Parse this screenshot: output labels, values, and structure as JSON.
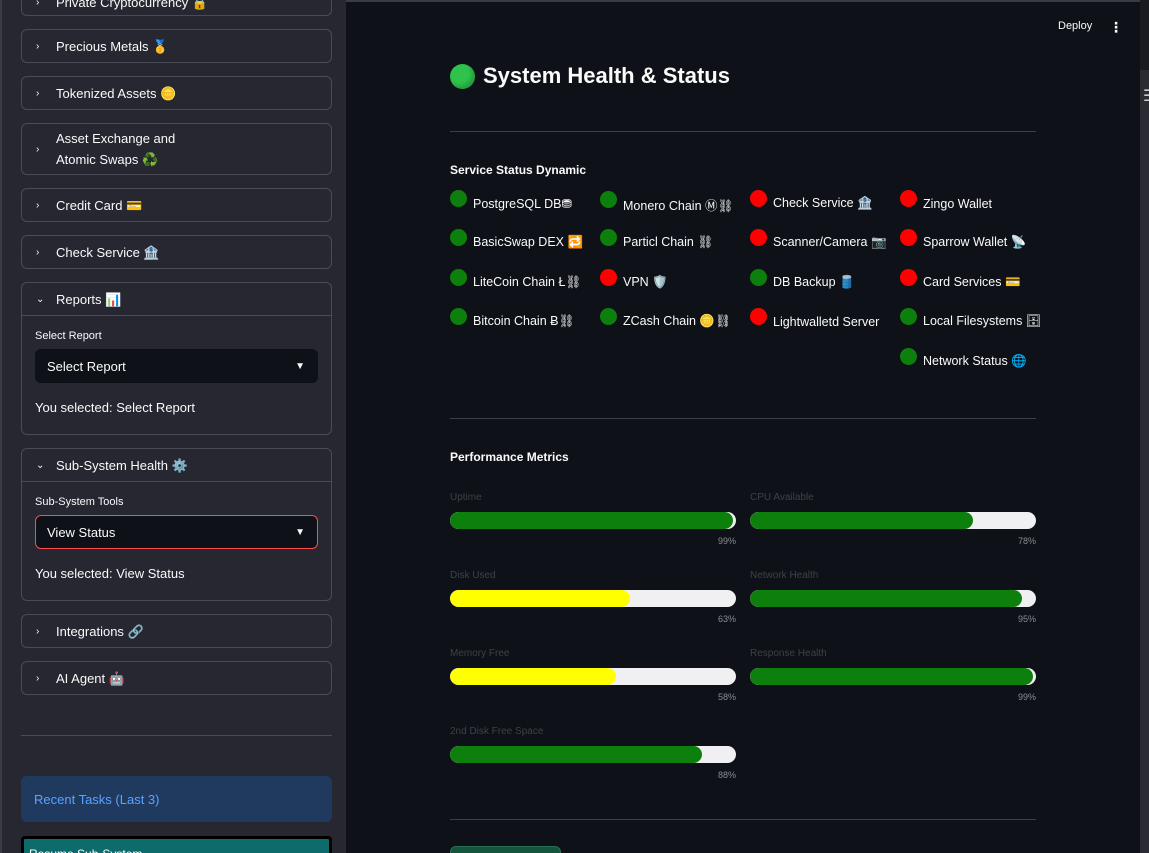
{
  "sidebar": {
    "expanders": [
      {
        "label": "Private Cryptocurrency 🔒",
        "expanded": false
      },
      {
        "label": "Precious Metals 🥇",
        "expanded": false
      },
      {
        "label": "Tokenized Assets 🪙",
        "expanded": false
      },
      {
        "label": "Asset Exchange and",
        "label2": "Atomic Swaps  ♻️",
        "expanded": false
      },
      {
        "label": "Credit Card 💳",
        "expanded": false
      },
      {
        "label": "Check Service 🏦",
        "expanded": false
      },
      {
        "label": "Reports 📊",
        "expanded": true,
        "field_label": "Select Report",
        "select_value": "Select Report",
        "selected_text": "You selected: Select Report"
      },
      {
        "label": "Sub-System Health ⚙️",
        "expanded": true,
        "field_label": "Sub-System Tools",
        "select_value": "View Status",
        "selected_text": "You selected: View Status"
      },
      {
        "label": "Integrations 🔗",
        "expanded": false
      },
      {
        "label": "AI Agent 🤖",
        "expanded": false
      }
    ],
    "recent_tasks": "Recent Tasks (Last 3)",
    "resume_button": "Resume Sub-System"
  },
  "topbar": {
    "deploy": "Deploy",
    "menu_icon": "vertical-ellipsis-icon"
  },
  "main": {
    "title": "System Health & Status",
    "service_section": "Service Status Dynamic",
    "services": [
      {
        "name": "PostgreSQL DB⛃",
        "status": "green"
      },
      {
        "name": "Monero Chain Ⓜ⛓",
        "status": "green"
      },
      {
        "name": "Check Service 🏦",
        "status": "red"
      },
      {
        "name": "Zingo Wallet",
        "status": "red"
      },
      {
        "name": "BasicSwap DEX 🔁",
        "status": "green"
      },
      {
        "name": "Particl Chain ⛓",
        "status": "green"
      },
      {
        "name": "Scanner/Camera 📷",
        "status": "red"
      },
      {
        "name": "Sparrow Wallet 📡",
        "status": "red"
      },
      {
        "name": "LiteCoin Chain Ł⛓",
        "status": "green"
      },
      {
        "name": "VPN 🛡️",
        "status": "red"
      },
      {
        "name": "DB Backup 🛢️",
        "status": "green"
      },
      {
        "name": "Card Services 💳",
        "status": "red"
      },
      {
        "name": "Bitcoin Chain Ƀ⛓",
        "status": "green"
      },
      {
        "name": "ZCash Chain 🪙⛓",
        "status": "green"
      },
      {
        "name": "Lightwalletd Server",
        "status": "red"
      },
      {
        "name": "Local Filesystems 🗄",
        "status": "green"
      },
      {
        "name": "Network Status 🌐",
        "status": "green"
      }
    ],
    "metrics_section": "Performance Metrics",
    "metrics": [
      {
        "label": "Uptime",
        "value": 99,
        "pct": "99%",
        "color": "green"
      },
      {
        "label": "CPU Available",
        "value": 78,
        "pct": "78%",
        "color": "green"
      },
      {
        "label": "Disk Used",
        "value": 63,
        "pct": "63%",
        "color": "yellow"
      },
      {
        "label": "Network Health",
        "value": 95,
        "pct": "95%",
        "color": "green"
      },
      {
        "label": "Memory Free",
        "value": 58,
        "pct": "58%",
        "color": "yellow"
      },
      {
        "label": "Response Health",
        "value": 99,
        "pct": "99%",
        "color": "green"
      },
      {
        "label": "2nd Disk Free Space",
        "value": 88,
        "pct": "88%",
        "color": "green"
      }
    ]
  },
  "colors": {
    "status_green": "#0c7f0c",
    "status_red": "#ff0000",
    "warn_yellow": "#ffff00",
    "accent_red": "#ff4b4b"
  }
}
